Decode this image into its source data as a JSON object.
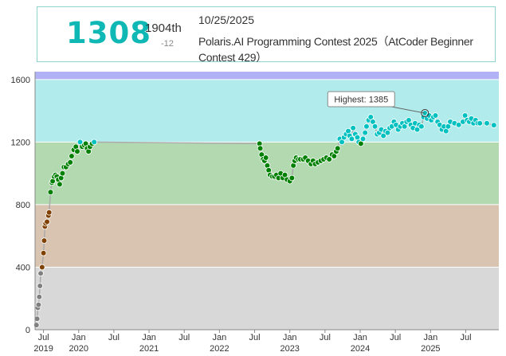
{
  "status": {
    "rating": "1308",
    "rank": "1904th",
    "delta": "-12",
    "date": "10/25/2025",
    "contest": "Polaris.AI Programming Contest 2025（AtCoder Beginner Contest 429）"
  },
  "chart_data": {
    "type": "scatter",
    "title": "",
    "xlabel": "",
    "ylabel": "",
    "ylim": [
      0,
      1650
    ],
    "xlim": [
      2019.38,
      2025.97
    ],
    "y_ticks": [
      "0",
      "400",
      "800",
      "1200",
      "1600"
    ],
    "x_ticks": [
      {
        "month": "Jul",
        "year": "2019",
        "x": 2019.5
      },
      {
        "month": "Jan",
        "year": "2020",
        "x": 2020.0
      },
      {
        "month": "Jul",
        "year": "",
        "x": 2020.5
      },
      {
        "month": "Jan",
        "year": "2021",
        "x": 2021.0
      },
      {
        "month": "Jul",
        "year": "",
        "x": 2021.5
      },
      {
        "month": "Jan",
        "year": "2022",
        "x": 2022.0
      },
      {
        "month": "Jul",
        "year": "",
        "x": 2022.5
      },
      {
        "month": "Jan",
        "year": "2023",
        "x": 2023.0
      },
      {
        "month": "Jul",
        "year": "",
        "x": 2023.5
      },
      {
        "month": "Jan",
        "year": "2024",
        "x": 2024.0
      },
      {
        "month": "Jul",
        "year": "",
        "x": 2024.5
      },
      {
        "month": "Jan",
        "year": "2025",
        "x": 2025.0
      },
      {
        "month": "Jul",
        "year": "",
        "x": 2025.5
      }
    ],
    "bands": [
      {
        "from": 0,
        "to": 400,
        "color": "#d8d8d8"
      },
      {
        "from": 400,
        "to": 800,
        "color": "#d9c3b1"
      },
      {
        "from": 800,
        "to": 1200,
        "color": "#b3d9b1"
      },
      {
        "from": 1200,
        "to": 1600,
        "color": "#b1ebeb"
      },
      {
        "from": 1600,
        "to": 1650,
        "color": "#b1b1f5"
      }
    ],
    "tier_colors": {
      "gray": "#808080",
      "brown": "#804000",
      "green": "#008000",
      "cyan": "#00c0c0"
    },
    "highlight": {
      "label": "Highest: 1385",
      "x": 2024.92,
      "y": 1385
    },
    "series": [
      {
        "points": [
          [
            2019.4,
            30
          ],
          [
            2019.41,
            70
          ],
          [
            2019.42,
            140
          ],
          [
            2019.43,
            160
          ],
          [
            2019.44,
            210
          ],
          [
            2019.45,
            280
          ],
          [
            2019.46,
            360
          ],
          [
            2019.48,
            400
          ],
          [
            2019.5,
            490
          ],
          [
            2019.51,
            570
          ],
          [
            2019.52,
            660
          ],
          [
            2019.53,
            680
          ],
          [
            2019.55,
            690
          ],
          [
            2019.57,
            730
          ],
          [
            2019.58,
            750
          ],
          [
            2019.6,
            880
          ],
          [
            2019.62,
            940
          ],
          [
            2019.63,
            950
          ],
          [
            2019.65,
            980
          ],
          [
            2019.67,
            990
          ],
          [
            2019.69,
            980
          ],
          [
            2019.71,
            960
          ],
          [
            2019.73,
            930
          ],
          [
            2019.75,
            970
          ],
          [
            2019.77,
            1000
          ],
          [
            2019.79,
            1040
          ],
          [
            2019.82,
            1040
          ],
          [
            2019.85,
            1060
          ],
          [
            2019.88,
            1070
          ],
          [
            2019.9,
            1110
          ],
          [
            2019.93,
            1150
          ],
          [
            2019.96,
            1170
          ],
          [
            2019.98,
            1140
          ],
          [
            2020.02,
            1200
          ],
          [
            2020.05,
            1170
          ],
          [
            2020.08,
            1180
          ],
          [
            2020.1,
            1190
          ],
          [
            2020.12,
            1160
          ],
          [
            2020.14,
            1140
          ],
          [
            2020.16,
            1170
          ],
          [
            2020.19,
            1190
          ],
          [
            2020.22,
            1200
          ],
          [
            2022.57,
            1190
          ],
          [
            2022.58,
            1160
          ],
          [
            2022.6,
            1120
          ],
          [
            2022.62,
            1090
          ],
          [
            2022.64,
            1080
          ],
          [
            2022.66,
            1100
          ],
          [
            2022.68,
            1050
          ],
          [
            2022.7,
            1020
          ],
          [
            2022.72,
            990
          ],
          [
            2022.75,
            980
          ],
          [
            2022.78,
            980
          ],
          [
            2022.81,
            990
          ],
          [
            2022.84,
            970
          ],
          [
            2022.87,
            1000
          ],
          [
            2022.9,
            970
          ],
          [
            2022.93,
            990
          ],
          [
            2022.96,
            960
          ],
          [
            2023.0,
            950
          ],
          [
            2023.03,
            970
          ],
          [
            2023.05,
            1050
          ],
          [
            2023.07,
            1080
          ],
          [
            2023.09,
            1100
          ],
          [
            2023.12,
            1090
          ],
          [
            2023.15,
            1090
          ],
          [
            2023.19,
            1090
          ],
          [
            2023.22,
            1100
          ],
          [
            2023.26,
            1080
          ],
          [
            2023.3,
            1060
          ],
          [
            2023.33,
            1080
          ],
          [
            2023.36,
            1060
          ],
          [
            2023.4,
            1070
          ],
          [
            2023.44,
            1080
          ],
          [
            2023.48,
            1090
          ],
          [
            2023.52,
            1100
          ],
          [
            2023.56,
            1090
          ],
          [
            2023.6,
            1120
          ],
          [
            2023.63,
            1110
          ],
          [
            2023.66,
            1140
          ],
          [
            2023.68,
            1160
          ],
          [
            2023.71,
            1220
          ],
          [
            2023.74,
            1200
          ],
          [
            2023.77,
            1230
          ],
          [
            2023.8,
            1250
          ],
          [
            2023.83,
            1270
          ],
          [
            2023.85,
            1240
          ],
          [
            2023.88,
            1220
          ],
          [
            2023.9,
            1290
          ],
          [
            2023.93,
            1250
          ],
          [
            2023.96,
            1230
          ],
          [
            2023.98,
            1200
          ],
          [
            2024.01,
            1190
          ],
          [
            2024.04,
            1220
          ],
          [
            2024.07,
            1260
          ],
          [
            2024.09,
            1300
          ],
          [
            2024.12,
            1340
          ],
          [
            2024.15,
            1360
          ],
          [
            2024.18,
            1330
          ],
          [
            2024.21,
            1300
          ],
          [
            2024.24,
            1250
          ],
          [
            2024.27,
            1260
          ],
          [
            2024.3,
            1280
          ],
          [
            2024.33,
            1240
          ],
          [
            2024.36,
            1270
          ],
          [
            2024.39,
            1260
          ],
          [
            2024.42,
            1290
          ],
          [
            2024.45,
            1300
          ],
          [
            2024.48,
            1330
          ],
          [
            2024.51,
            1310
          ],
          [
            2024.54,
            1280
          ],
          [
            2024.57,
            1300
          ],
          [
            2024.6,
            1320
          ],
          [
            2024.63,
            1300
          ],
          [
            2024.66,
            1330
          ],
          [
            2024.69,
            1340
          ],
          [
            2024.72,
            1310
          ],
          [
            2024.75,
            1290
          ],
          [
            2024.78,
            1320
          ],
          [
            2024.81,
            1280
          ],
          [
            2024.84,
            1310
          ],
          [
            2024.87,
            1300
          ],
          [
            2024.9,
            1360
          ],
          [
            2024.92,
            1385
          ],
          [
            2024.95,
            1350
          ],
          [
            2024.98,
            1370
          ],
          [
            2025.01,
            1340
          ],
          [
            2025.04,
            1360
          ],
          [
            2025.07,
            1370
          ],
          [
            2025.1,
            1330
          ],
          [
            2025.13,
            1310
          ],
          [
            2025.16,
            1280
          ],
          [
            2025.19,
            1300
          ],
          [
            2025.22,
            1270
          ],
          [
            2025.25,
            1300
          ],
          [
            2025.28,
            1330
          ],
          [
            2025.34,
            1320
          ],
          [
            2025.4,
            1310
          ],
          [
            2025.46,
            1330
          ],
          [
            2025.49,
            1370
          ],
          [
            2025.52,
            1340
          ],
          [
            2025.55,
            1330
          ],
          [
            2025.58,
            1350
          ],
          [
            2025.61,
            1320
          ],
          [
            2025.64,
            1340
          ],
          [
            2025.67,
            1320
          ],
          [
            2025.7,
            1320
          ],
          [
            2025.8,
            1320
          ],
          [
            2025.9,
            1308
          ]
        ]
      }
    ]
  }
}
